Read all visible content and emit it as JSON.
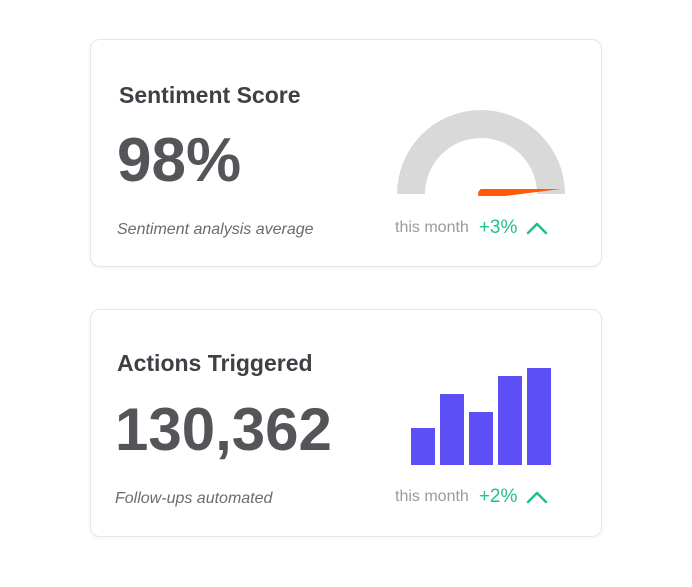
{
  "cards": [
    {
      "title": "Sentiment Score",
      "value": "98%",
      "caption": "Sentiment analysis average",
      "trend": {
        "period": "this month",
        "delta": "+3%",
        "direction": "up"
      },
      "visual": {
        "type": "gauge",
        "percent": 98,
        "track_color": "#d9d9d9",
        "needle_color": "#ff5a0a"
      }
    },
    {
      "title": "Actions Triggered",
      "value": "130,362",
      "caption": "Follow-ups automated",
      "trend": {
        "period": "this month",
        "delta": "+2%",
        "direction": "up"
      },
      "visual": {
        "type": "bar",
        "relative_values": [
          0.38,
          0.73,
          0.55,
          0.92,
          1.0
        ],
        "bar_color": "#5b4ff5"
      }
    }
  ],
  "colors": {
    "trend_up": "#22c08e",
    "title": "#3f3f46",
    "value": "#555559",
    "muted": "#9a9aa0"
  },
  "icons": {
    "trend_up": "chevron-up-icon"
  }
}
